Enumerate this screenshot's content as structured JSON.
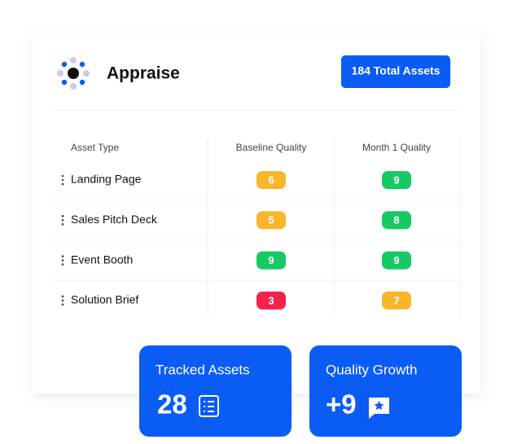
{
  "header": {
    "title": "Appraise",
    "badge": "184 Total Assets"
  },
  "table": {
    "columns": [
      "Asset Type",
      "Baseline Quality",
      "Month 1 Quality"
    ],
    "rows": [
      {
        "name": "Landing Page",
        "baseline": {
          "value": 6,
          "color": "#f9b52c"
        },
        "month1": {
          "value": 9,
          "color": "#17c964"
        }
      },
      {
        "name": "Sales Pitch Deck",
        "baseline": {
          "value": 5,
          "color": "#f9b52c"
        },
        "month1": {
          "value": 8,
          "color": "#17c964"
        }
      },
      {
        "name": "Event Booth",
        "baseline": {
          "value": 9,
          "color": "#17c964"
        },
        "month1": {
          "value": 9,
          "color": "#17c964"
        }
      },
      {
        "name": "Solution Brief",
        "baseline": {
          "value": 3,
          "color": "#f5224b"
        },
        "month1": {
          "value": 7,
          "color": "#f9b52c"
        }
      }
    ]
  },
  "stats": [
    {
      "label": "Tracked Assets",
      "value": "28"
    },
    {
      "label": "Quality Growth",
      "value": "+9"
    }
  ]
}
